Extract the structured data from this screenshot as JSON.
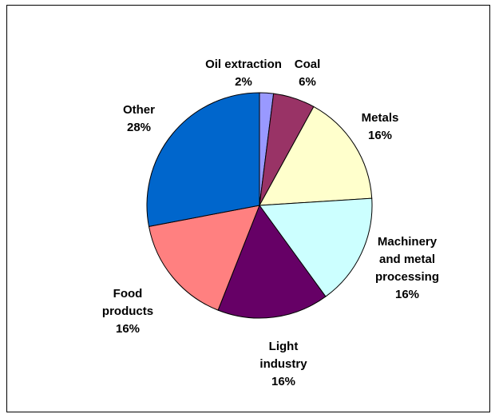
{
  "chart_data": {
    "type": "pie",
    "title": "",
    "slices": [
      {
        "name": [
          "Oil extraction"
        ],
        "value": 2,
        "pct": "2%",
        "color": "#9999FF"
      },
      {
        "name": [
          "Coal"
        ],
        "value": 6,
        "pct": "6%",
        "color": "#993366"
      },
      {
        "name": [
          "Metals"
        ],
        "value": 16,
        "pct": "16%",
        "color": "#FFFFCC"
      },
      {
        "name": [
          "Machinery",
          "and metal",
          "processing"
        ],
        "value": 16,
        "pct": "16%",
        "color": "#CCFFFF"
      },
      {
        "name": [
          "Light",
          "industry"
        ],
        "value": 16,
        "pct": "16%",
        "color": "#660066"
      },
      {
        "name": [
          "Food",
          "products"
        ],
        "value": 16,
        "pct": "16%",
        "color": "#FF8080"
      },
      {
        "name": [
          "Other"
        ],
        "value": 28,
        "pct": "28%",
        "color": "#0066CC"
      }
    ],
    "legend": "none",
    "data_labels": "outside"
  }
}
